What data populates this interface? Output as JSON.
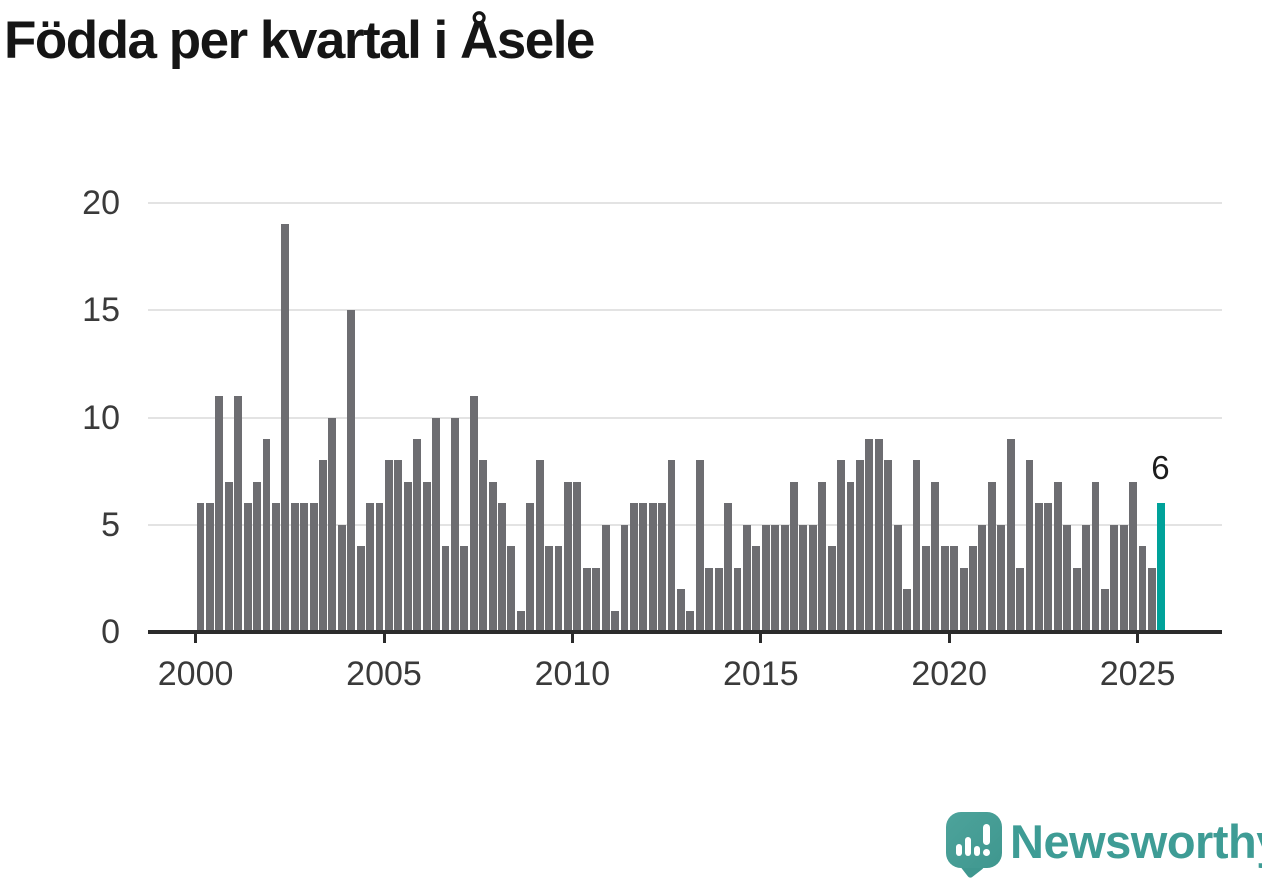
{
  "title": "Födda per kvartal i Åsele",
  "colors": {
    "bar": "#6d6d71",
    "highlight": "#00a29a",
    "grid": "#e3e3e3",
    "axis": "#2b2b2b",
    "tick_text": "#3a3a3a",
    "title_text": "#151515",
    "logo_teal": "#3e9c95"
  },
  "chart_data": {
    "type": "bar",
    "title": "Födda per kvartal i Åsele",
    "x_unit": "quarter",
    "x_start": "2000-Q1",
    "x_end": "2025-Q3",
    "periods_per_year": 4,
    "start_year": 2000,
    "values": [
      6,
      6,
      11,
      7,
      11,
      6,
      7,
      9,
      6,
      19,
      6,
      6,
      6,
      8,
      10,
      5,
      15,
      4,
      6,
      6,
      8,
      8,
      7,
      9,
      7,
      10,
      4,
      10,
      4,
      11,
      8,
      7,
      6,
      4,
      1,
      6,
      8,
      4,
      4,
      7,
      7,
      3,
      3,
      5,
      1,
      5,
      6,
      6,
      6,
      6,
      8,
      2,
      1,
      8,
      3,
      3,
      6,
      3,
      5,
      4,
      5,
      5,
      5,
      7,
      5,
      5,
      7,
      4,
      8,
      7,
      8,
      9,
      9,
      8,
      5,
      2,
      8,
      4,
      7,
      4,
      4,
      3,
      4,
      5,
      7,
      5,
      9,
      3,
      8,
      6,
      6,
      7,
      5,
      3,
      5,
      7,
      2,
      5,
      5,
      7,
      4,
      3,
      6
    ],
    "yticks": [
      0,
      5,
      10,
      15,
      20
    ],
    "ylim": [
      0,
      20
    ],
    "xticks": [
      2000,
      2005,
      2010,
      2015,
      2020,
      2025
    ],
    "grid": "horizontal",
    "legend": "none",
    "highlight": {
      "period": "2025-Q3",
      "value": 6,
      "label": "6",
      "position": "last"
    }
  },
  "logo": {
    "text": "Newsworthy"
  }
}
